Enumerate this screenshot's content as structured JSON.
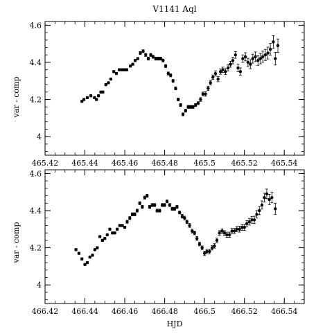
{
  "chart_data": [
    {
      "type": "scatter",
      "title": "V1141 Aql",
      "xlabel": "",
      "ylabel": "var - comp",
      "xlim": [
        465.42,
        465.55
      ],
      "ylim": [
        4.62,
        3.9
      ],
      "xticks": [
        465.42,
        465.44,
        465.46,
        465.48,
        465.5,
        465.52,
        465.54
      ],
      "xtick_labels": [
        "465.42",
        "465.44",
        "465.46",
        "465.48",
        "465.5",
        "465.52",
        "465.54"
      ],
      "yticks": [
        4,
        4.2,
        4.4,
        4.6
      ],
      "ytick_labels": [
        "4",
        "4.2",
        "4.4",
        "4.6"
      ],
      "grid": false,
      "series": [
        {
          "x": [
            465.4385,
            465.4395,
            465.4412,
            465.443,
            465.4448,
            465.4458,
            465.4468,
            465.448,
            465.449,
            465.4505,
            465.4518,
            465.453,
            465.4545,
            465.4558,
            465.4572,
            465.4585,
            465.4598,
            465.461,
            465.4628,
            465.464,
            465.4652,
            465.4665,
            465.4678,
            465.4692,
            465.4705,
            465.4718,
            465.473,
            465.4742,
            465.4755,
            465.4768,
            465.478,
            465.4792,
            465.4805,
            465.4818,
            465.483,
            465.4842,
            465.4855,
            465.4868,
            465.488,
            465.4892,
            465.4905,
            465.4918,
            465.493,
            465.4942,
            465.4955,
            465.4968,
            465.498,
            465.4992,
            465.5005,
            465.5018,
            465.503,
            465.5042,
            465.5055,
            465.5068,
            465.508,
            465.5092,
            465.5105,
            465.5118,
            465.513,
            465.5142,
            465.5155,
            465.5168,
            465.518,
            465.5192,
            465.5205,
            465.5218,
            465.523,
            465.5242,
            465.5255,
            465.5268,
            465.528,
            465.5292,
            465.5305,
            465.5318,
            465.533,
            465.5345,
            465.5355,
            465.5368
          ],
          "y": [
            4.19,
            4.2,
            4.21,
            4.22,
            4.21,
            4.2,
            4.22,
            4.24,
            4.24,
            4.28,
            4.29,
            4.31,
            4.35,
            4.34,
            4.36,
            4.36,
            4.36,
            4.36,
            4.38,
            4.39,
            4.41,
            4.42,
            4.45,
            4.46,
            4.44,
            4.42,
            4.44,
            4.43,
            4.42,
            4.42,
            4.42,
            4.41,
            4.38,
            4.34,
            4.33,
            4.3,
            4.26,
            4.2,
            4.17,
            4.12,
            4.14,
            4.16,
            4.16,
            4.16,
            4.17,
            4.18,
            4.2,
            4.23,
            4.23,
            4.26,
            4.29,
            4.32,
            4.34,
            4.31,
            4.35,
            4.36,
            4.35,
            4.37,
            4.39,
            4.41,
            4.44,
            4.37,
            4.35,
            4.42,
            4.43,
            4.4,
            4.39,
            4.42,
            4.43,
            4.41,
            4.42,
            4.43,
            4.44,
            4.45,
            4.47,
            4.51,
            4.42,
            4.49
          ],
          "err": [
            0.006,
            0.006,
            0.006,
            0.006,
            0.006,
            0.006,
            0.006,
            0.006,
            0.006,
            0.006,
            0.006,
            0.006,
            0.006,
            0.006,
            0.006,
            0.006,
            0.006,
            0.006,
            0.006,
            0.006,
            0.006,
            0.006,
            0.008,
            0.008,
            0.008,
            0.008,
            0.008,
            0.008,
            0.008,
            0.008,
            0.008,
            0.008,
            0.008,
            0.008,
            0.008,
            0.008,
            0.008,
            0.008,
            0.008,
            0.008,
            0.008,
            0.008,
            0.008,
            0.008,
            0.008,
            0.008,
            0.01,
            0.01,
            0.012,
            0.012,
            0.012,
            0.012,
            0.014,
            0.014,
            0.014,
            0.014,
            0.016,
            0.016,
            0.016,
            0.018,
            0.018,
            0.02,
            0.02,
            0.02,
            0.022,
            0.022,
            0.024,
            0.024,
            0.026,
            0.026,
            0.028,
            0.03,
            0.03,
            0.032,
            0.032,
            0.034,
            0.034,
            0.036
          ]
        }
      ]
    },
    {
      "type": "scatter",
      "title": "",
      "xlabel": "HJD",
      "ylabel": "var - comp",
      "xlim": [
        466.42,
        466.55
      ],
      "ylim": [
        4.62,
        3.9
      ],
      "xticks": [
        466.42,
        466.44,
        466.46,
        466.48,
        466.5,
        466.52,
        466.54
      ],
      "xtick_labels": [
        "466.42",
        "466.44",
        "466.46",
        "466.48",
        "466.5",
        "466.52",
        "466.54"
      ],
      "yticks": [
        4,
        4.2,
        4.4,
        4.6
      ],
      "ytick_labels": [
        "4",
        "4.2",
        "4.4",
        "4.6"
      ],
      "grid": false,
      "series": [
        {
          "x": [
            466.4355,
            466.437,
            466.4385,
            466.44,
            466.4412,
            466.4425,
            466.4438,
            466.445,
            466.4462,
            466.4475,
            466.4488,
            466.45,
            466.4512,
            466.4525,
            466.4538,
            466.455,
            466.4562,
            466.4575,
            466.4588,
            466.46,
            466.4612,
            466.4625,
            466.4638,
            466.465,
            466.4662,
            466.4675,
            466.4688,
            466.47,
            466.4712,
            466.4725,
            466.4738,
            466.475,
            466.4762,
            466.4775,
            466.4788,
            466.48,
            466.4812,
            466.4825,
            466.4838,
            466.485,
            466.4862,
            466.4875,
            466.4888,
            466.49,
            466.4912,
            466.4925,
            466.4938,
            466.495,
            466.4962,
            466.4975,
            466.4988,
            466.5,
            466.5012,
            466.5025,
            466.5038,
            466.505,
            466.5062,
            466.5075,
            466.5088,
            466.51,
            466.5112,
            466.5125,
            466.5138,
            466.515,
            466.5162,
            466.5175,
            466.5188,
            466.52,
            466.5212,
            466.5225,
            466.5238,
            466.525,
            466.5262,
            466.5275,
            466.5288,
            466.53,
            466.5312,
            466.5325,
            466.5338,
            466.5355
          ],
          "y": [
            4.19,
            4.17,
            4.14,
            4.11,
            4.12,
            4.15,
            4.16,
            4.19,
            4.2,
            4.26,
            4.24,
            4.25,
            4.27,
            4.3,
            4.28,
            4.28,
            4.3,
            4.32,
            4.32,
            4.31,
            4.34,
            4.36,
            4.38,
            4.38,
            4.4,
            4.44,
            4.42,
            4.47,
            4.48,
            4.42,
            4.43,
            4.43,
            4.4,
            4.4,
            4.43,
            4.43,
            4.45,
            4.43,
            4.41,
            4.41,
            4.42,
            4.39,
            4.37,
            4.36,
            4.34,
            4.32,
            4.29,
            4.28,
            4.25,
            4.22,
            4.2,
            4.17,
            4.18,
            4.18,
            4.2,
            4.21,
            4.24,
            4.28,
            4.29,
            4.28,
            4.27,
            4.27,
            4.29,
            4.29,
            4.3,
            4.3,
            4.31,
            4.31,
            4.33,
            4.34,
            4.35,
            4.35,
            4.38,
            4.4,
            4.43,
            4.47,
            4.49,
            4.46,
            4.47,
            4.41
          ],
          "err": [
            0.006,
            0.006,
            0.006,
            0.006,
            0.006,
            0.006,
            0.006,
            0.006,
            0.006,
            0.006,
            0.006,
            0.006,
            0.006,
            0.006,
            0.006,
            0.006,
            0.006,
            0.006,
            0.006,
            0.006,
            0.008,
            0.008,
            0.008,
            0.008,
            0.008,
            0.008,
            0.008,
            0.008,
            0.008,
            0.008,
            0.008,
            0.008,
            0.008,
            0.008,
            0.008,
            0.008,
            0.008,
            0.008,
            0.008,
            0.008,
            0.008,
            0.008,
            0.01,
            0.01,
            0.01,
            0.01,
            0.01,
            0.01,
            0.01,
            0.01,
            0.01,
            0.012,
            0.012,
            0.012,
            0.012,
            0.012,
            0.012,
            0.012,
            0.012,
            0.012,
            0.014,
            0.014,
            0.014,
            0.014,
            0.014,
            0.016,
            0.016,
            0.016,
            0.016,
            0.018,
            0.018,
            0.02,
            0.02,
            0.022,
            0.022,
            0.024,
            0.026,
            0.028,
            0.028,
            0.03
          ]
        }
      ]
    }
  ]
}
